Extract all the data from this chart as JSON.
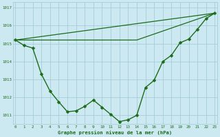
{
  "line1": {
    "x": [
      0,
      1,
      2,
      3,
      4,
      5,
      6,
      7,
      8,
      9,
      10,
      11,
      12,
      13,
      14,
      15,
      16,
      17,
      18,
      19,
      20,
      21,
      22,
      23
    ],
    "y": [
      1015.2,
      1014.9,
      1014.75,
      1013.3,
      1012.35,
      1011.75,
      1011.2,
      1011.25,
      1011.5,
      1011.85,
      1011.45,
      1011.05,
      1010.65,
      1010.75,
      1011.0,
      1012.55,
      1012.95,
      1014.0,
      1014.35,
      1015.05,
      1015.25,
      1015.8,
      1016.4,
      1016.7
    ],
    "color": "#1a6b1a",
    "markersize": 2.5,
    "linewidth": 1.0
  },
  "line2": {
    "x": [
      0,
      23
    ],
    "y": [
      1015.2,
      1016.7
    ],
    "color": "#1a6b1a",
    "linewidth": 0.9
  },
  "line3": {
    "x": [
      0,
      14,
      23
    ],
    "y": [
      1015.2,
      1015.2,
      1016.7
    ],
    "color": "#1a6b1a",
    "linewidth": 0.9
  },
  "ylim": [
    1010.5,
    1017.3
  ],
  "xlim": [
    -0.3,
    23.3
  ],
  "yticks": [
    1011,
    1012,
    1013,
    1014,
    1015,
    1016,
    1017
  ],
  "xticks": [
    0,
    1,
    2,
    3,
    4,
    5,
    6,
    7,
    8,
    9,
    10,
    11,
    12,
    13,
    14,
    15,
    16,
    17,
    18,
    19,
    20,
    21,
    22,
    23
  ],
  "xlabel": "Graphe pression niveau de la mer (hPa)",
  "bg_color": "#cce8f0",
  "grid_color": "#9ec8d8",
  "line_color": "#1a6b1a",
  "text_color": "#1a6b1a",
  "label_color": "#1a6b1a",
  "fig_width": 3.2,
  "fig_height": 2.0,
  "dpi": 100
}
